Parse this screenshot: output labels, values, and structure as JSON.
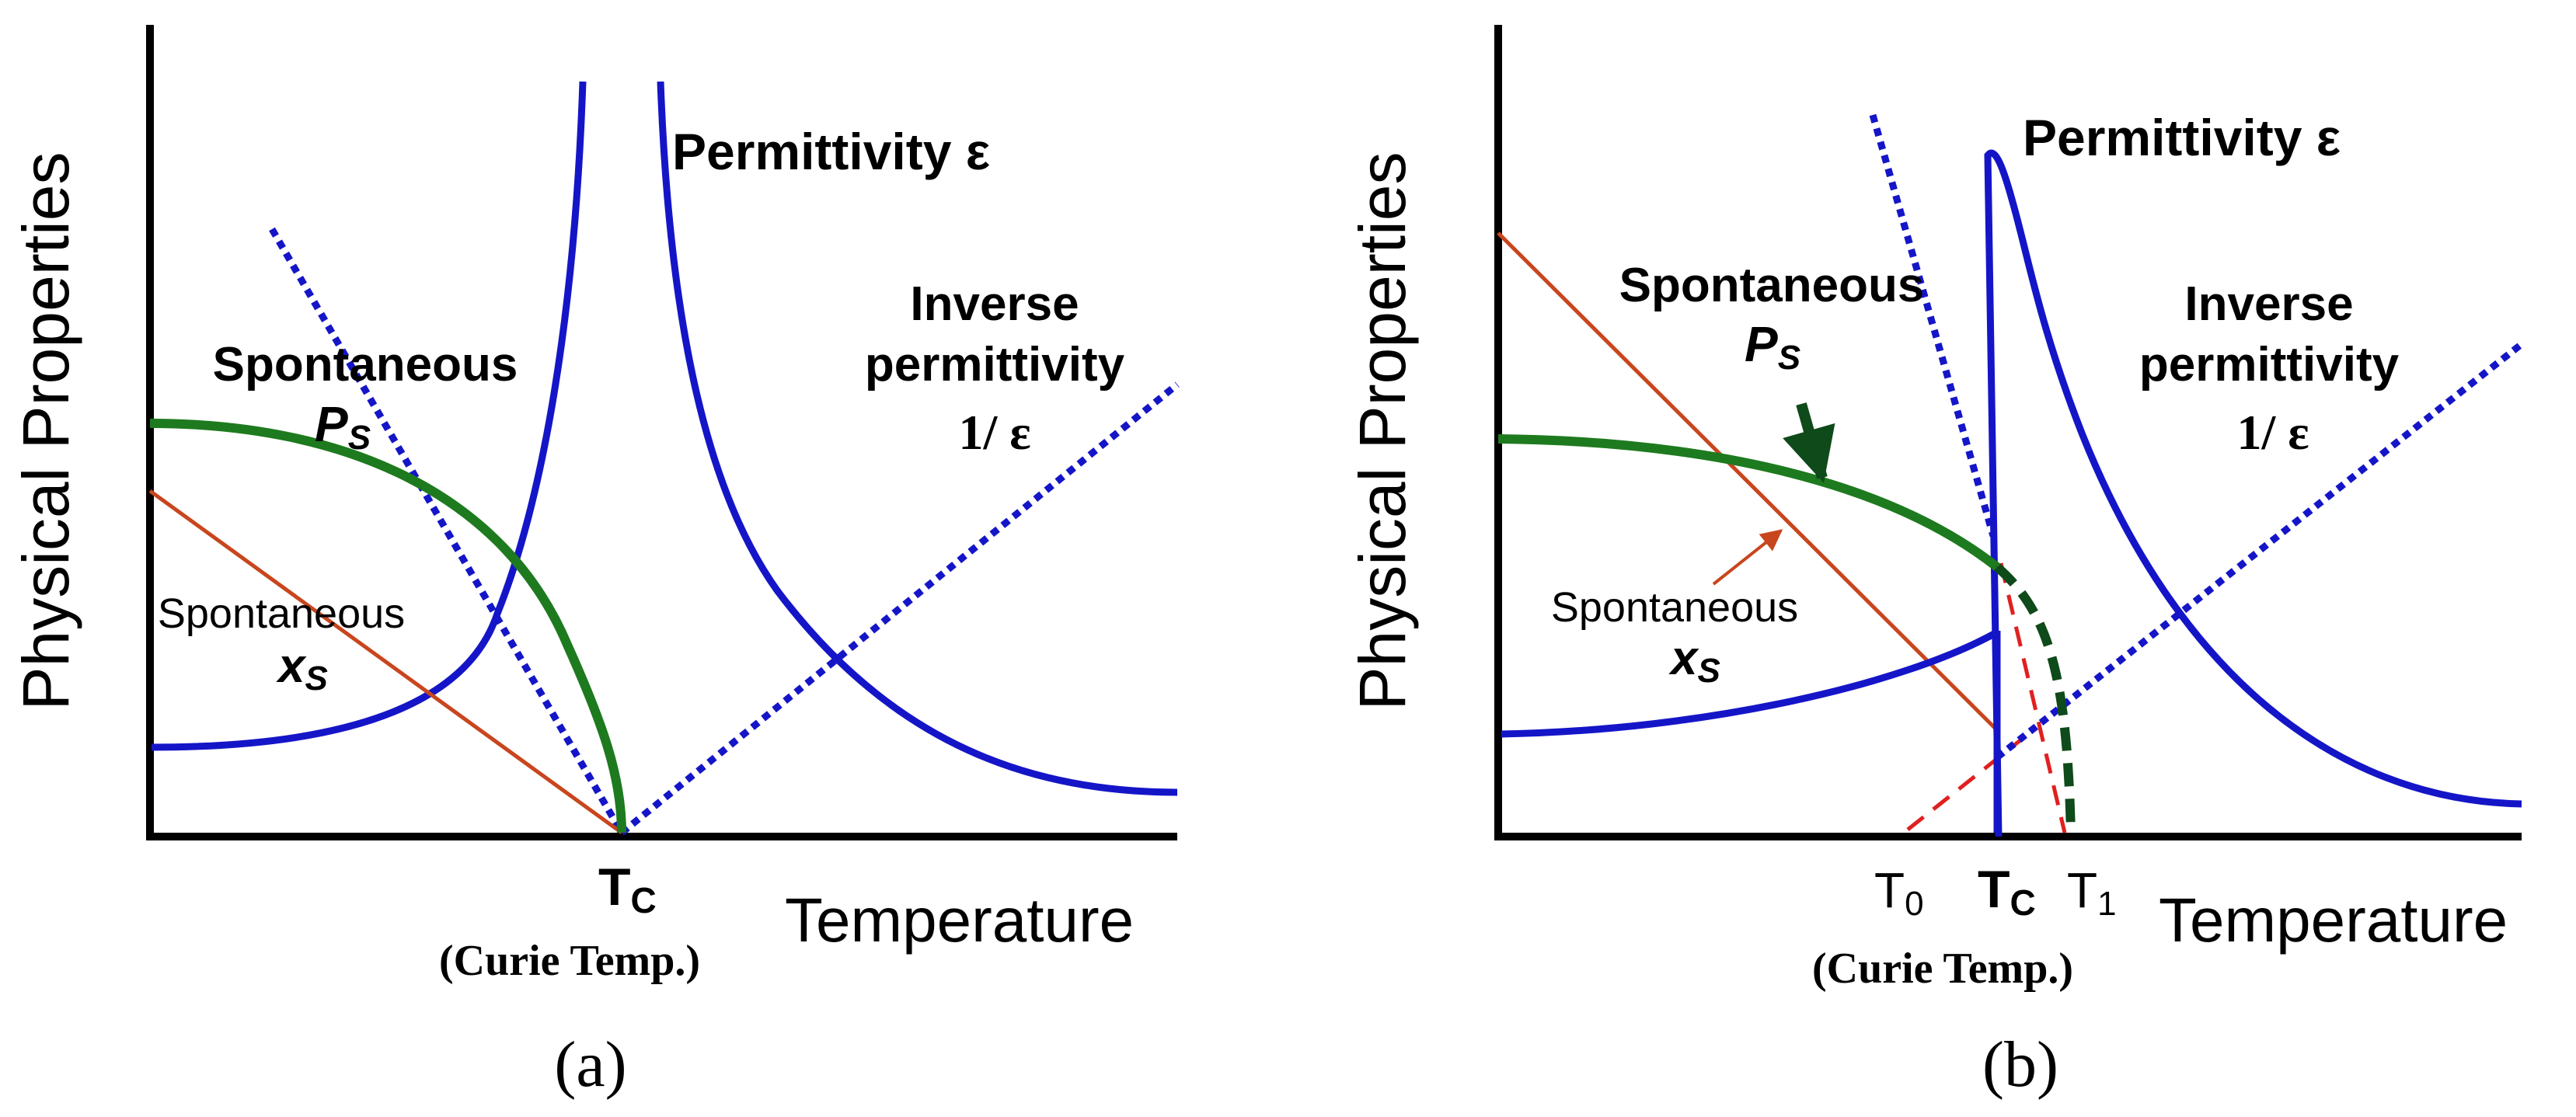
{
  "colors": {
    "axis": "#000000",
    "permittivity": "#1515c8",
    "polarization": "#1e7a1e",
    "polarization_dark": "#0f4a1a",
    "strain": "#c8461e",
    "extrap": "#e02020"
  },
  "panel_a": {
    "y_axis_label": "Physical Properties",
    "x_axis_label": "Temperature",
    "tc_label": "T",
    "tc_sub": "C",
    "curie_label": "(Curie Temp.)",
    "caption": "(a)",
    "permittivity_label": "Permittivity ε",
    "inverse_label_1": "Inverse",
    "inverse_label_2": "permittivity",
    "inverse_label_3": "1/ ε",
    "ps_label_1": "Spontaneous",
    "ps_label_2": "P",
    "ps_label_sub": "S",
    "xs_label_1": "Spontaneous",
    "xs_label_2": "x",
    "xs_label_sub": "S"
  },
  "panel_b": {
    "y_axis_label": "Physical Properties",
    "x_axis_label": "Temperature",
    "t0_label": "T",
    "t0_sub": "0",
    "tc_label": "T",
    "tc_sub": "C",
    "t1_label": "T",
    "t1_sub": "1",
    "curie_label": "(Curie Temp.)",
    "caption": "(b)",
    "permittivity_label": "Permittivity ε",
    "inverse_label_1": "Inverse",
    "inverse_label_2": "permittivity",
    "inverse_label_3": "1/ ε",
    "ps_label_1": "Spontaneous",
    "ps_label_2": "P",
    "ps_label_sub": "S",
    "xs_label_1": "Spontaneous",
    "xs_label_2": "x",
    "xs_label_sub": "S"
  }
}
